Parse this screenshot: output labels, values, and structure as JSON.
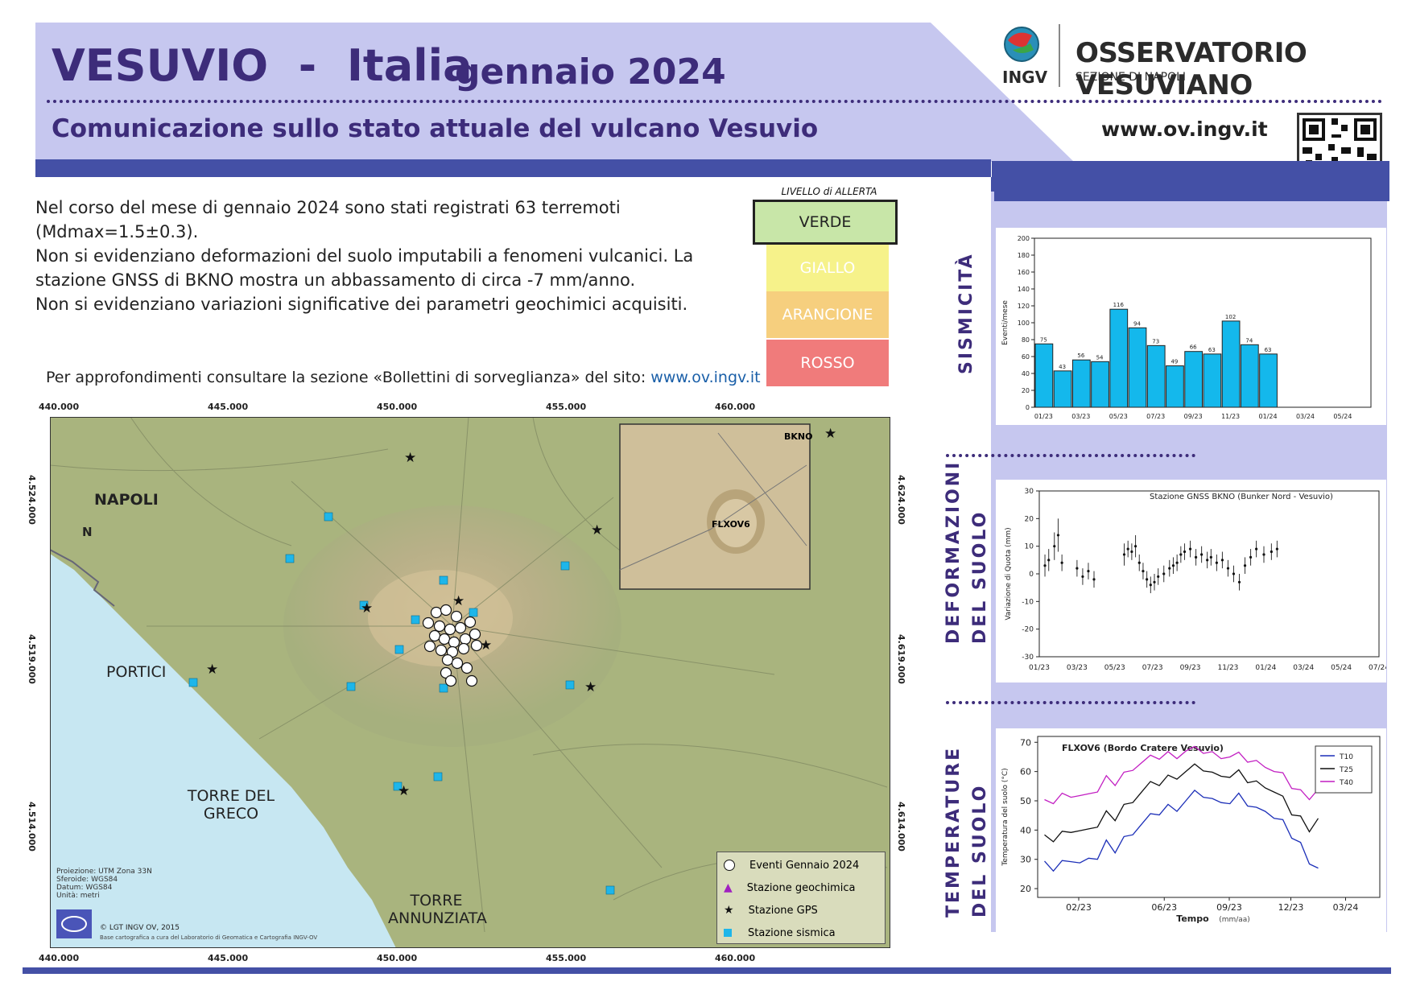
{
  "header": {
    "title": "VESUVIO  -  Italia",
    "month": "gennaio 2024",
    "subtitle": "Comunicazione sullo stato attuale del vulcano Vesuvio",
    "url": "www.ov.ingv.it",
    "org_name": "OSSERVATORIO VESUVIANO",
    "org_sub": "SEZIONE DI NAPOLI",
    "logo_text": "INGV"
  },
  "intro": {
    "p1": "Nel corso del mese di gennaio 2024 sono stati registrati 63 terremoti",
    "p1b": "(Mdmax=1.5±0.3).",
    "p2": "Non si evidenziano deformazioni del suolo imputabili a fenomeni vulcanici. La",
    "p2b": "stazione GNSS di BKNO mostra un abbassamento di circa -7 mm/anno.",
    "p3": "Non si evidenziano variazioni significative dei parametri geochimici acquisiti.",
    "more_prefix": "Per approfondimenti consultare la sezione «Bollettini di sorveglianza» del sito: ",
    "more_link": "www.ov.ingv.it"
  },
  "alert": {
    "title": "LIVELLO di ALLERTA",
    "levels": [
      {
        "label": "VERDE",
        "color": "#c8e6a8",
        "active": true
      },
      {
        "label": "GIALLO",
        "color": "#f6f28a",
        "active": false
      },
      {
        "label": "ARANCIONE",
        "color": "#f6cf7e",
        "active": false
      },
      {
        "label": "ROSSO",
        "color": "#f07b7b",
        "active": false
      }
    ]
  },
  "sections": {
    "seismicity": "SISMICITÀ",
    "deformation_1": "DEFORMAZIONI",
    "deformation_2": "DEL SUOLO",
    "temperature_1": "TEMPERATURE",
    "temperature_2": "DEL SUOLO"
  },
  "map": {
    "x_ticks": [
      "440.000",
      "445.000",
      "450.000",
      "455.000",
      "460.000"
    ],
    "y_ticks_left": [
      "4.524.000",
      "4.519.000",
      "4.514.000"
    ],
    "y_ticks_right": [
      "4.624.000",
      "4.619.000",
      "4.614.000"
    ],
    "places": {
      "napoli": "NAPOLI",
      "portici": "PORTICI",
      "torre_greco": "TORRE DEL GRECO",
      "torre_annunziata": "TORRE ANNUNZIATA"
    },
    "north": "N",
    "inset_labels": {
      "bkno": "BKNO",
      "flxov6": "FLXOV6"
    },
    "legend": [
      "Eventi Gennaio 2024",
      "Stazione geochimica",
      "Stazione GPS",
      "Stazione sismica"
    ],
    "projection": [
      "Proiezione: UTM Zona 33N",
      "Sferoide: WGS84",
      "Datum: WGS84",
      "Unità: metri"
    ],
    "copyright": "© LGT INGV OV, 2015",
    "credit": "Base cartografica a cura del Laboratorio di Geomatica e Cartografia INGV-OV"
  },
  "chart_data": [
    {
      "type": "bar",
      "ylabel": "Eventi/mese",
      "ylim": [
        0,
        200
      ],
      "yticks": [
        "0",
        "20",
        "40",
        "60",
        "80",
        "100",
        "120",
        "140",
        "160",
        "180",
        "200"
      ],
      "categories": [
        "01/23",
        "02/23",
        "03/23",
        "04/23",
        "05/23",
        "06/23",
        "07/23",
        "08/23",
        "09/23",
        "10/23",
        "11/23",
        "12/23",
        "01/24"
      ],
      "values": [
        75,
        43,
        56,
        54,
        116,
        94,
        73,
        49,
        66,
        63,
        102,
        74,
        63
      ],
      "xticks": [
        "01/23",
        "03/23",
        "05/23",
        "07/23",
        "09/23",
        "11/23",
        "01/24",
        "03/24",
        "05/24"
      ],
      "color": "#14b8ec"
    },
    {
      "type": "scatter",
      "title": "Stazione GNSS BKNO (Bunker Nord - Vesuvio)",
      "ylabel": "Variazione di Quota (mm)",
      "ylim": [
        -30,
        30
      ],
      "yticks": [
        "30",
        "20",
        "10",
        "0",
        "-10",
        "-20",
        "-30"
      ],
      "xticks": [
        "01/23",
        "03/23",
        "05/23",
        "07/23",
        "09/23",
        "11/23",
        "01/24",
        "03/24",
        "05/24",
        "07/24"
      ],
      "x_months": [
        0.3,
        0.5,
        0.8,
        1.0,
        1.2,
        2.0,
        2.3,
        2.6,
        2.9,
        4.5,
        4.7,
        4.9,
        5.1,
        5.3,
        5.5,
        5.7,
        5.9,
        6.1,
        6.3,
        6.6,
        6.9,
        7.1,
        7.3,
        7.5,
        7.7,
        8.0,
        8.3,
        8.6,
        8.9,
        9.1,
        9.4,
        9.7,
        10.0,
        10.3,
        10.6,
        10.9,
        11.2,
        11.5,
        11.9,
        12.3,
        12.6
      ],
      "values": [
        3,
        5,
        10,
        14,
        4,
        2,
        -1,
        1,
        -2,
        7,
        9,
        8,
        10,
        4,
        1,
        -2,
        -4,
        -3,
        -1,
        0,
        2,
        3,
        4,
        7,
        8,
        9,
        6,
        7,
        5,
        6,
        4,
        5,
        2,
        0,
        -3,
        3,
        6,
        9,
        7,
        8,
        9
      ],
      "errors": [
        4,
        4,
        5,
        6,
        3,
        3,
        3,
        3,
        3,
        4,
        3,
        3,
        4,
        3,
        3,
        3,
        3,
        3,
        3,
        3,
        3,
        3,
        3,
        3,
        3,
        3,
        3,
        3,
        3,
        3,
        3,
        3,
        3,
        3,
        3,
        3,
        3,
        3,
        3,
        3,
        3
      ]
    },
    {
      "type": "line",
      "title": "FLXOV6 (Bordo Cratere Vesuvio)",
      "xlabel": "Tempo",
      "xlabel_unit": "(mm/aa)",
      "ylabel": "Temperatura del suolo (°C)",
      "ylim": [
        17,
        72
      ],
      "yticks": [
        "70",
        "60",
        "50",
        "40",
        "30",
        "20"
      ],
      "xticks": [
        "02/23",
        "06/23",
        "09/23",
        "12/23",
        "03/24"
      ],
      "series": [
        {
          "name": "T10",
          "color": "#1c2fb8",
          "values": [
            31,
            26,
            28,
            30,
            28,
            32,
            30,
            35,
            33,
            37,
            40,
            42,
            44,
            46,
            48,
            48,
            50,
            52,
            52,
            50,
            51,
            49,
            51,
            49,
            47,
            48,
            44,
            42,
            38,
            35,
            30,
            27
          ]
        },
        {
          "name": "T25",
          "color": "#111111",
          "values": [
            40,
            36,
            38,
            40,
            39,
            42,
            41,
            45,
            44,
            48,
            51,
            53,
            55,
            56,
            58,
            59,
            60,
            61,
            61,
            59,
            60,
            58,
            59,
            57,
            56,
            56,
            53,
            50,
            46,
            44,
            41,
            44
          ]
        },
        {
          "name": "T40",
          "color": "#c21ec2",
          "values": [
            52,
            49,
            51,
            52,
            51,
            54,
            53,
            57,
            56,
            59,
            62,
            63,
            64,
            65,
            66,
            66,
            67,
            67,
            67,
            66,
            66,
            65,
            65,
            64,
            63,
            63,
            60,
            58,
            55,
            53,
            52,
            54
          ]
        }
      ]
    }
  ]
}
